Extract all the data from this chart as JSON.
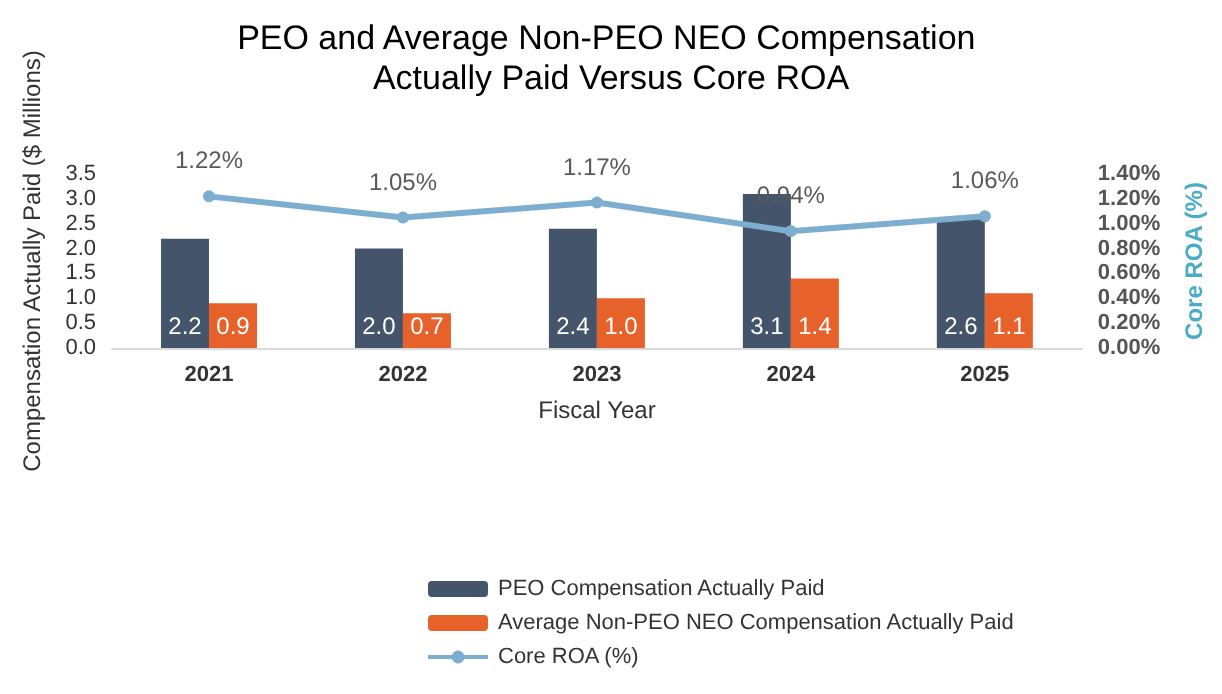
{
  "chart_data": {
    "type": "bar",
    "title": "PEO and Average Non-PEO NEO Compensation Actually Paid Versus Core ROA",
    "xlabel": "Fiscal Year",
    "ylabel": "Compensation Actually Paid ($ Millions)",
    "y2label": "Core ROA (%)",
    "categories": [
      "2021",
      "2022",
      "2023",
      "2024",
      "2025"
    ],
    "series": [
      {
        "name": "PEO Compensation Actually Paid",
        "color": "#44546a",
        "values": [
          2.2,
          2.0,
          2.4,
          3.1,
          2.6
        ],
        "value_labels": [
          "2.2",
          "2.0",
          "2.4",
          "3.1",
          "2.6"
        ]
      },
      {
        "name": "Average Non-PEO NEO Compensation Actually Paid",
        "color": "#e7622a",
        "values": [
          0.9,
          0.7,
          1.0,
          1.4,
          1.1
        ],
        "value_labels": [
          "0.9",
          "0.7",
          "1.0",
          "1.4",
          "1.1"
        ]
      },
      {
        "name": "Core ROA (%)",
        "type": "line",
        "axis": "y2",
        "color": "#7eaecf",
        "marker": "circle",
        "values": [
          1.22,
          1.05,
          1.17,
          0.94,
          1.06
        ],
        "value_labels": [
          "1.22%",
          "1.05%",
          "1.17%",
          "0.94%",
          "1.06%"
        ]
      }
    ],
    "ylim": [
      0,
      3.5
    ],
    "yticks": [
      {
        "value": 0,
        "label": "0.0"
      },
      {
        "value": 0.5,
        "label": "0.5"
      },
      {
        "value": 1,
        "label": "1.0"
      },
      {
        "value": 1.5,
        "label": "1.5"
      },
      {
        "value": 2,
        "label": "2.0"
      },
      {
        "value": 2.5,
        "label": "2.5"
      },
      {
        "value": 3,
        "label": "3.0"
      },
      {
        "value": 3.5,
        "label": "3.5"
      }
    ],
    "y2lim": [
      0,
      1.4
    ],
    "y2ticks": [
      {
        "value": 0,
        "label": "0.00%"
      },
      {
        "value": 0.2,
        "label": "0.20%"
      },
      {
        "value": 0.4,
        "label": "0.40%"
      },
      {
        "value": 0.6,
        "label": "0.60%"
      },
      {
        "value": 0.8,
        "label": "0.80%"
      },
      {
        "value": 1,
        "label": "1.00%"
      },
      {
        "value": 1.2,
        "label": "1.20%"
      },
      {
        "value": 1.4,
        "label": "1.40%"
      }
    ],
    "grid": false,
    "legend": "bottom"
  }
}
